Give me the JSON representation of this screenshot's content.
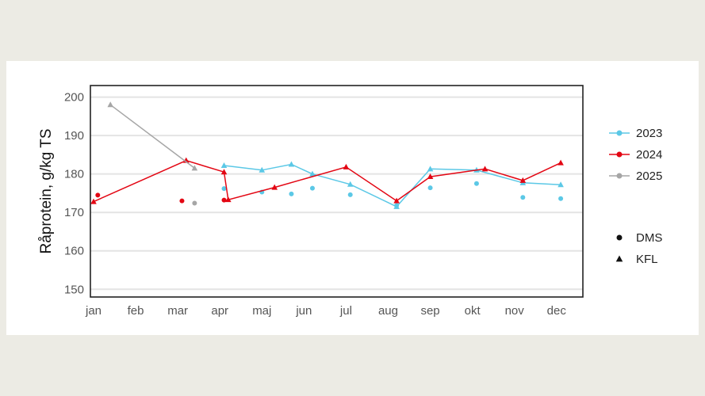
{
  "chart_data": {
    "type": "line",
    "title": "",
    "xlabel": "",
    "ylabel": "Råprotein, g/kg TS",
    "ylim": [
      148,
      203
    ],
    "yticks": [
      150,
      160,
      170,
      180,
      190,
      200
    ],
    "xlim": [
      1,
      12.4
    ],
    "categories": [
      "jan",
      "feb",
      "mar",
      "apr",
      "maj",
      "jun",
      "jul",
      "aug",
      "sep",
      "okt",
      "nov",
      "dec"
    ],
    "grid": "horizontal",
    "legend_position": "right",
    "series": [
      {
        "name": "2023",
        "color": "#5bc8e6",
        "kfl": [
          [
            4.1,
            182.2
          ],
          [
            5.0,
            181.0
          ],
          [
            5.7,
            182.5
          ],
          [
            6.2,
            180.0
          ],
          [
            7.1,
            177.3
          ],
          [
            8.2,
            171.5
          ],
          [
            9.0,
            181.3
          ],
          [
            10.1,
            181.0
          ],
          [
            11.2,
            177.7
          ],
          [
            12.1,
            177.2
          ]
        ],
        "dms": [
          [
            4.1,
            176.2
          ],
          [
            5.0,
            175.3
          ],
          [
            5.7,
            174.8
          ],
          [
            6.2,
            176.3
          ],
          [
            7.1,
            174.6
          ],
          [
            8.2,
            171.8
          ],
          [
            9.0,
            176.4
          ],
          [
            10.1,
            177.5
          ],
          [
            11.2,
            173.9
          ],
          [
            12.1,
            173.6
          ]
        ]
      },
      {
        "name": "2024",
        "color": "#e30613",
        "kfl": [
          [
            1.0,
            172.8
          ],
          [
            3.2,
            183.5
          ],
          [
            4.1,
            180.5
          ],
          [
            4.2,
            173.3
          ],
          [
            5.3,
            176.5
          ],
          [
            7.0,
            181.8
          ],
          [
            8.2,
            173.0
          ],
          [
            9.0,
            179.3
          ],
          [
            10.3,
            181.3
          ],
          [
            11.2,
            178.3
          ],
          [
            12.1,
            182.9
          ]
        ],
        "dms": [
          [
            1.1,
            174.5
          ],
          [
            3.1,
            173.0
          ],
          [
            4.1,
            173.2
          ]
        ]
      },
      {
        "name": "2025",
        "color": "#a6a6a6",
        "kfl": [
          [
            1.4,
            198.0
          ],
          [
            3.4,
            181.5
          ]
        ],
        "dms": [
          [
            3.4,
            172.4
          ]
        ]
      }
    ],
    "marker_legend": [
      {
        "marker": "circle",
        "label": "DMS"
      },
      {
        "marker": "triangle",
        "label": "KFL"
      }
    ]
  }
}
